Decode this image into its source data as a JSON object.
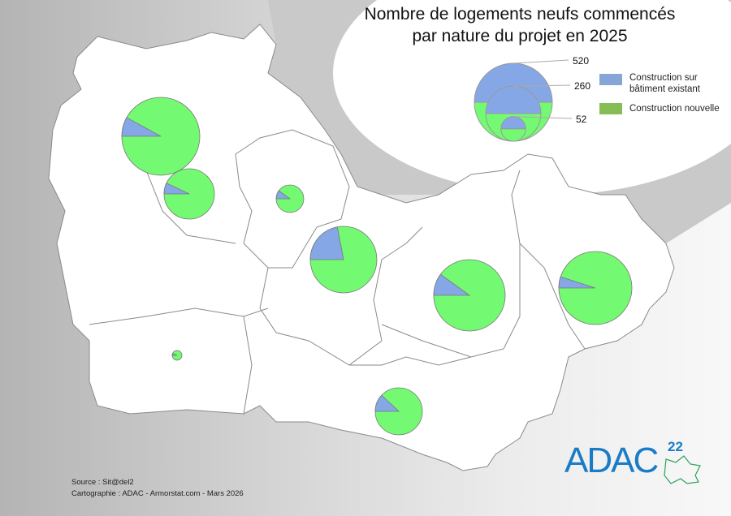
{
  "title": {
    "line1": "Nombre de logements neufs commencés",
    "line2": "par nature du projet en 2025"
  },
  "colors": {
    "existing": "#86a7e6",
    "new": "#74fa72",
    "legend_new": "#86bd55",
    "legend_existing": "#86a6d8",
    "land": "#ffffff",
    "border": "#8a8a8a",
    "logo": "#1b7cc6"
  },
  "legend": {
    "sizes": [
      "520",
      "260",
      "52"
    ],
    "items": [
      {
        "label_line1": "Construction sur",
        "label_line2": "bâtiment existant"
      },
      {
        "label_line1": "Construction nouvelle",
        "label_line2": ""
      }
    ]
  },
  "chart_data": {
    "type": "pie",
    "note_scale": "circle area proportional to total",
    "reference_sizes": [
      520,
      260,
      52
    ],
    "series_names": [
      "Construction sur bâtiment existant",
      "Construction nouvelle"
    ],
    "pies": [
      {
        "total": 520,
        "existing_share": 0.08
      },
      {
        "total": 217,
        "existing_share": 0.07
      },
      {
        "total": 65,
        "existing_share": 0.1
      },
      {
        "total": 379,
        "existing_share": 0.22
      },
      {
        "total": 437,
        "existing_share": 0.1
      },
      {
        "total": 457,
        "existing_share": 0.05
      },
      {
        "total": 190,
        "existing_share": 0.12
      },
      {
        "total": 8,
        "existing_share": 0.06
      }
    ]
  },
  "footer": {
    "source": "Source : Sit@del2",
    "credit": "Cartographie : ADAC - Armorstat.com - Mars 2026"
  },
  "logo": {
    "text": "ADAC",
    "sup": "22"
  }
}
